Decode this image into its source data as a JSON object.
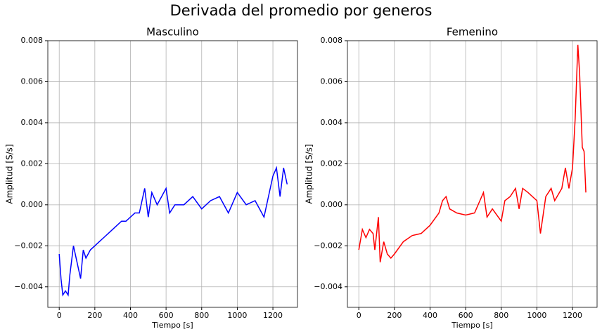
{
  "title": "Derivada del promedio por generos",
  "chart_data": [
    {
      "type": "line",
      "title": "Masculino",
      "xlabel": "Tiempo [s]",
      "ylabel": "Amplitud [S/s]",
      "xlim": [
        -64,
        1338
      ],
      "ylim": [
        -0.005,
        0.008
      ],
      "grid": true,
      "xticks": [
        0,
        200,
        400,
        600,
        800,
        1000,
        1200
      ],
      "yticks": [
        {
          "value": -0.004,
          "label": "−0.004"
        },
        {
          "value": -0.002,
          "label": "−0.002"
        },
        {
          "value": 0,
          "label": "0.000"
        },
        {
          "value": 0.002,
          "label": "0.002"
        },
        {
          "value": 0.004,
          "label": "0.004"
        },
        {
          "value": 0.006,
          "label": "0.006"
        },
        {
          "value": 0.008,
          "label": "0.008"
        }
      ],
      "x": [
        0,
        10,
        20,
        35,
        50,
        60,
        80,
        100,
        120,
        135,
        150,
        175,
        200,
        225,
        250,
        275,
        300,
        325,
        350,
        375,
        400,
        425,
        450,
        480,
        500,
        520,
        550,
        600,
        620,
        650,
        700,
        750,
        800,
        850,
        900,
        950,
        1000,
        1050,
        1100,
        1150,
        1170,
        1200,
        1220,
        1240,
        1260,
        1280
      ],
      "series": [
        {
          "color": "#0000ff",
          "values": [
            -0.0024,
            -0.0036,
            -0.0044,
            -0.0042,
            -0.0044,
            -0.0034,
            -0.002,
            -0.0028,
            -0.0036,
            -0.0022,
            -0.0026,
            -0.0022,
            -0.002,
            -0.0018,
            -0.0016,
            -0.0014,
            -0.0012,
            -0.001,
            -0.0008,
            -0.0008,
            -0.0006,
            -0.0004,
            -0.0004,
            0.0008,
            -0.0006,
            0.0006,
            0.0,
            0.0008,
            -0.0004,
            0.0,
            0.0,
            0.0004,
            -0.0002,
            0.0002,
            0.0004,
            -0.0004,
            0.0006,
            0.0,
            0.0002,
            -0.0006,
            0.0002,
            0.0014,
            0.0018,
            0.0004,
            0.0018,
            0.001
          ]
        }
      ]
    },
    {
      "type": "line",
      "title": "Femenino",
      "xlabel": "Tiempo [s]",
      "ylabel": "Amplitud [S/s]",
      "xlim": [
        -64,
        1338
      ],
      "ylim": [
        -0.005,
        0.008
      ],
      "grid": true,
      "xticks": [
        0,
        200,
        400,
        600,
        800,
        1000,
        1200
      ],
      "yticks": [
        {
          "value": -0.004,
          "label": "−0.004"
        },
        {
          "value": -0.002,
          "label": "−0.002"
        },
        {
          "value": 0,
          "label": "0.000"
        },
        {
          "value": 0.002,
          "label": "0.002"
        },
        {
          "value": 0.004,
          "label": "0.004"
        },
        {
          "value": 0.006,
          "label": "0.006"
        },
        {
          "value": 0.008,
          "label": "0.008"
        }
      ],
      "x": [
        0,
        20,
        40,
        60,
        80,
        90,
        110,
        120,
        140,
        160,
        180,
        200,
        250,
        300,
        350,
        400,
        450,
        470,
        490,
        510,
        550,
        600,
        650,
        700,
        720,
        750,
        800,
        820,
        850,
        880,
        900,
        920,
        950,
        1000,
        1020,
        1050,
        1080,
        1100,
        1140,
        1160,
        1180,
        1200,
        1215,
        1230,
        1240,
        1255,
        1265,
        1275
      ],
      "series": [
        {
          "color": "#ff0000",
          "values": [
            -0.0022,
            -0.0012,
            -0.0016,
            -0.0012,
            -0.0014,
            -0.0022,
            -0.0006,
            -0.0028,
            -0.0018,
            -0.0024,
            -0.0026,
            -0.0024,
            -0.0018,
            -0.0015,
            -0.0014,
            -0.001,
            -0.0004,
            0.0002,
            0.0004,
            -0.0002,
            -0.0004,
            -0.0005,
            -0.0004,
            0.0006,
            -0.0006,
            -0.0002,
            -0.0008,
            0.0002,
            0.0004,
            0.0008,
            -0.0002,
            0.0008,
            0.0006,
            0.0002,
            -0.0014,
            0.0004,
            0.0008,
            0.0002,
            0.0008,
            0.0018,
            0.0008,
            0.0018,
            0.0042,
            0.0078,
            0.0064,
            0.0028,
            0.0026,
            0.0006
          ]
        }
      ]
    }
  ]
}
